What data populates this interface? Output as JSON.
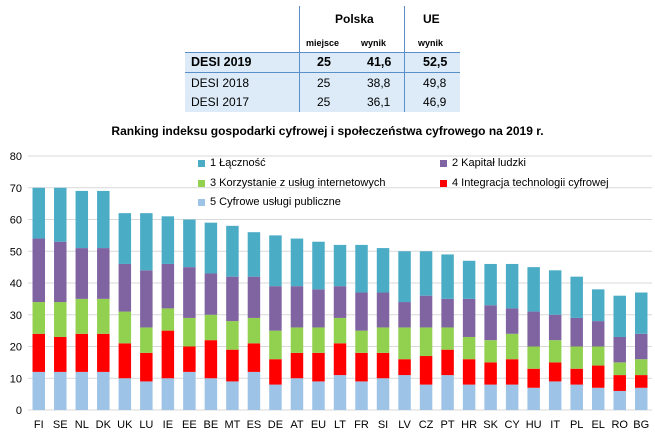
{
  "summary_table": {
    "headers": {
      "polska": "Polska",
      "ue": "UE"
    },
    "subheaders": {
      "miejsce": "miejsce",
      "wynik_pl": "wynik",
      "wynik_ue": "wynik"
    },
    "rows": [
      {
        "label": "DESI 2019",
        "miejsce": "25",
        "wynik": "41,6",
        "ue": "52,5"
      },
      {
        "label": "DESI 2018",
        "miejsce": "25",
        "wynik": "38,8",
        "ue": "49,8"
      },
      {
        "label": "DESI 2017",
        "miejsce": "25",
        "wynik": "36,1",
        "ue": "46,9"
      }
    ]
  },
  "chart_data": {
    "type": "bar",
    "stacked": true,
    "title": "Ranking indeksu gospodarki cyfrowej i społeczeństwa cyfrowego na 2019 r.",
    "xlabel": "",
    "ylabel": "",
    "ylim": [
      0,
      80
    ],
    "yticks": [
      0,
      10,
      20,
      30,
      40,
      50,
      60,
      70,
      80
    ],
    "grid": true,
    "legend_position": "top",
    "categories": [
      "FI",
      "SE",
      "NL",
      "DK",
      "UK",
      "LU",
      "IE",
      "EE",
      "BE",
      "MT",
      "ES",
      "DE",
      "AT",
      "EU",
      "LT",
      "FR",
      "SI",
      "LV",
      "CZ",
      "PT",
      "HR",
      "SK",
      "CY",
      "HU",
      "IT",
      "PL",
      "EL",
      "RO",
      "BG"
    ],
    "series": [
      {
        "name": "5 Cyfrowe usługi publiczne",
        "color": "#9dc3e6",
        "values": [
          12,
          12,
          12,
          12,
          10,
          9,
          10,
          12,
          10,
          9,
          12,
          8,
          10,
          9,
          11,
          9,
          10,
          11,
          8,
          11,
          8,
          8,
          8,
          7,
          9,
          8,
          7,
          6,
          7
        ]
      },
      {
        "name": "4 Integracja technologii cyfrowej",
        "color": "#ff0000",
        "values": [
          12,
          11,
          12,
          12,
          11,
          9,
          15,
          8,
          12,
          10,
          9,
          8,
          8,
          9,
          10,
          9,
          8,
          5,
          9,
          8,
          8,
          7,
          8,
          6,
          6,
          5,
          7,
          5,
          4
        ]
      },
      {
        "name": "3 Korzystanie z usług internetowych",
        "color": "#92d050",
        "values": [
          10,
          11,
          11,
          11,
          10,
          8,
          7,
          9,
          8,
          9,
          8,
          9,
          8,
          8,
          8,
          7,
          8,
          10,
          9,
          7,
          7,
          7,
          8,
          7,
          7,
          7,
          6,
          4,
          5
        ]
      },
      {
        "name": "2 Kapitał ludzki",
        "color": "#8064a2",
        "values": [
          20,
          19,
          16,
          16,
          15,
          18,
          14,
          16,
          13,
          14,
          13,
          14,
          13,
          12,
          10,
          12,
          11,
          8,
          10,
          9,
          12,
          11,
          8,
          11,
          8,
          9,
          8,
          8,
          8
        ]
      },
      {
        "name": "1 Łączność",
        "color": "#4bacc6",
        "values": [
          16,
          17,
          18,
          18,
          16,
          18,
          15,
          15,
          16,
          16,
          14,
          16,
          15,
          15,
          13,
          15,
          14,
          16,
          14,
          14,
          12,
          13,
          14,
          14,
          14,
          13,
          10,
          13,
          13
        ]
      }
    ]
  }
}
